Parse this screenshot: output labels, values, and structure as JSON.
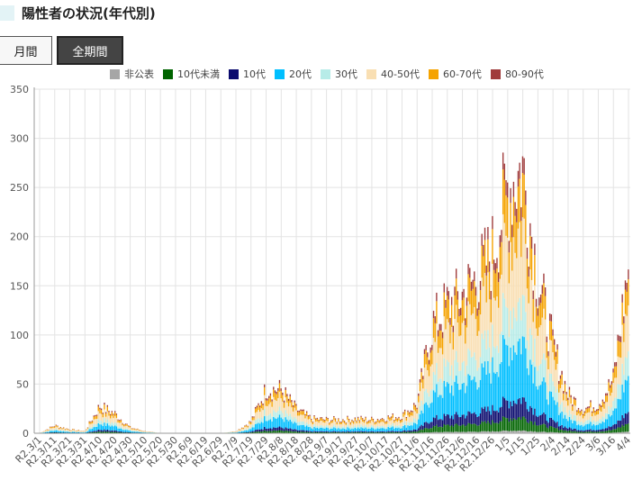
{
  "header": {
    "title": "陽性者の状況(年代別)"
  },
  "buttons": [
    {
      "label": "月間",
      "active": false
    },
    {
      "label": "全期間",
      "active": true
    }
  ],
  "colors": {
    "title_marker": "#e3f3f6",
    "grid": "#e3e3e3",
    "axis": "#999999"
  },
  "chart_data": {
    "type": "bar",
    "stacked": true,
    "grid": true,
    "legend_position": "top",
    "ylim": [
      0,
      350
    ],
    "y_ticks": [
      0,
      50,
      100,
      150,
      200,
      250,
      300,
      350
    ],
    "x_tick_labels": [
      "R2.3/1",
      "R2.3/11",
      "R2.3/21",
      "R2.3/31",
      "R2.4/10",
      "R2.4/20",
      "R2.4/30",
      "R2.5/10",
      "R2.5/20",
      "R2.5/30",
      "R2.6/9",
      "R2.6/19",
      "R2.6/29",
      "R2.7/9",
      "R2.7/19",
      "R2.7/29",
      "R2.8/8",
      "R2.8/18",
      "R2.8/28",
      "R2.9/7",
      "R2.9/17",
      "R2.9/27",
      "R2.10/7",
      "R2.10/17",
      "R2.10/27",
      "R2.11/6",
      "R2.11/16",
      "R2.11/26",
      "R2.12/6",
      "R2.12/16",
      "R2.12/26",
      "1/5",
      "1/15",
      "1/25",
      "2/4",
      "2/14",
      "2/24",
      "3/6",
      "3/16",
      "4/4"
    ],
    "series": [
      {
        "name": "非公表",
        "color": "#a6a6a6"
      },
      {
        "name": "10代未満",
        "color": "#006400"
      },
      {
        "name": "10代",
        "color": "#0a0a6e"
      },
      {
        "name": "20代",
        "color": "#00bfff"
      },
      {
        "name": "30代",
        "color": "#b7ece8"
      },
      {
        "name": "40-50代",
        "color": "#f9dfb3"
      },
      {
        "name": "60-70代",
        "color": "#f5a300"
      },
      {
        "name": "80-90代",
        "color": "#a03c3c"
      }
    ],
    "totals_by_tick": [
      0,
      8,
      4,
      2,
      28,
      20,
      6,
      2,
      0,
      0,
      0,
      0,
      0,
      2,
      12,
      45,
      45,
      25,
      15,
      14,
      14,
      15,
      14,
      16,
      18,
      30,
      110,
      130,
      140,
      160,
      185,
      250,
      270,
      160,
      90,
      40,
      25,
      30,
      55,
      170
    ]
  }
}
